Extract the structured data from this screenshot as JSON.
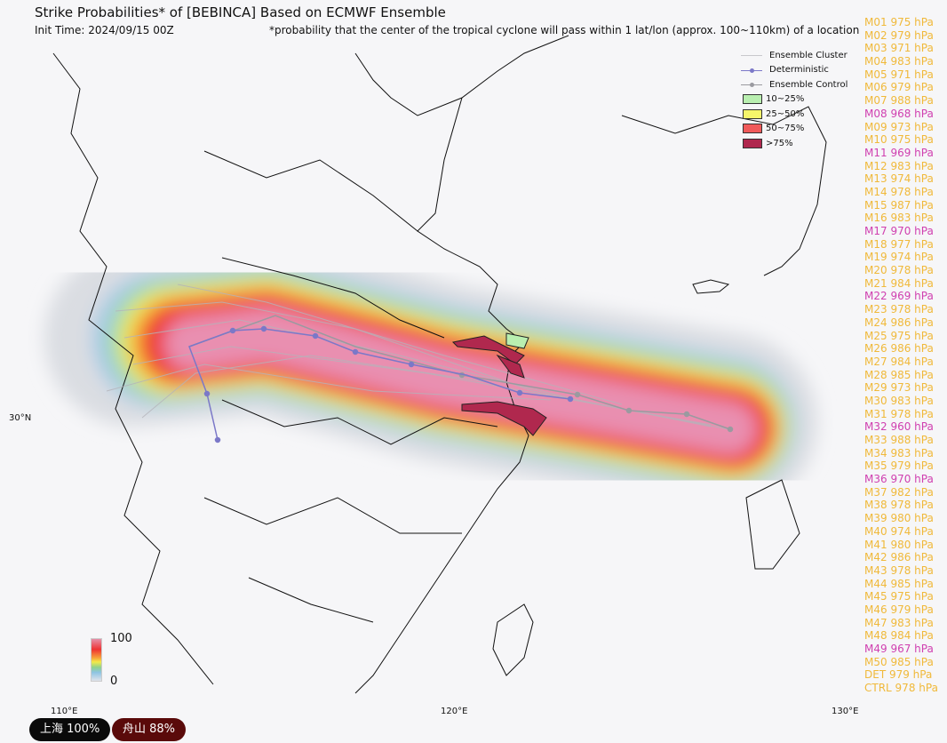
{
  "header": {
    "title": "Strike Probabilities* of [BEBINCA] Based on ECMWF Ensemble",
    "init_time": "Init Time: 2024/09/15 00Z",
    "footnote": "*probability that the center of the tropical cyclone will pass within 1 lat/lon (approx. 100~110km) of a location"
  },
  "legend": {
    "items": [
      {
        "label": "Ensemble Cluster",
        "type": "line",
        "color": "#c8c8cc"
      },
      {
        "label": "Deterministic",
        "type": "line-dot",
        "color": "#7b78c8"
      },
      {
        "label": "Ensemble Control",
        "type": "line-dot",
        "color": "#9a9aa0"
      },
      {
        "label": "10~25%",
        "type": "box",
        "color": "#b9efb0"
      },
      {
        "label": "25~50%",
        "type": "box",
        "color": "#f5f56a"
      },
      {
        "label": "50~75%",
        "type": "box",
        "color": "#f05a5a"
      },
      {
        "label": ">75%",
        "type": "box",
        "color": "#b0284e"
      }
    ]
  },
  "axes": {
    "lon_labels": [
      "110°E",
      "120°E",
      "130°E"
    ],
    "lat_labels": [
      "30°N"
    ]
  },
  "colorbar": {
    "max": "100",
    "min": "0"
  },
  "members": [
    {
      "label": "M01 975 hPa",
      "strong": false
    },
    {
      "label": "M02 979 hPa",
      "strong": false
    },
    {
      "label": "M03 971 hPa",
      "strong": false
    },
    {
      "label": "M04 983 hPa",
      "strong": false
    },
    {
      "label": "M05 971 hPa",
      "strong": false
    },
    {
      "label": "M06 979 hPa",
      "strong": false
    },
    {
      "label": "M07 988 hPa",
      "strong": false
    },
    {
      "label": "M08 968 hPa",
      "strong": true
    },
    {
      "label": "M09 973 hPa",
      "strong": false
    },
    {
      "label": "M10 975 hPa",
      "strong": false
    },
    {
      "label": "M11 969 hPa",
      "strong": true
    },
    {
      "label": "M12 983 hPa",
      "strong": false
    },
    {
      "label": "M13 974 hPa",
      "strong": false
    },
    {
      "label": "M14 978 hPa",
      "strong": false
    },
    {
      "label": "M15 987 hPa",
      "strong": false
    },
    {
      "label": "M16 983 hPa",
      "strong": false
    },
    {
      "label": "M17 970 hPa",
      "strong": true
    },
    {
      "label": "M18 977 hPa",
      "strong": false
    },
    {
      "label": "M19 974 hPa",
      "strong": false
    },
    {
      "label": "M20 978 hPa",
      "strong": false
    },
    {
      "label": "M21 984 hPa",
      "strong": false
    },
    {
      "label": "M22 969 hPa",
      "strong": true
    },
    {
      "label": "M23 978 hPa",
      "strong": false
    },
    {
      "label": "M24 986 hPa",
      "strong": false
    },
    {
      "label": "M25 975 hPa",
      "strong": false
    },
    {
      "label": "M26 986 hPa",
      "strong": false
    },
    {
      "label": "M27 984 hPa",
      "strong": false
    },
    {
      "label": "M28 985 hPa",
      "strong": false
    },
    {
      "label": "M29 973 hPa",
      "strong": false
    },
    {
      "label": "M30 983 hPa",
      "strong": false
    },
    {
      "label": "M31 978 hPa",
      "strong": false
    },
    {
      "label": "M32 960 hPa",
      "strong": true
    },
    {
      "label": "M33 988 hPa",
      "strong": false
    },
    {
      "label": "M34 983 hPa",
      "strong": false
    },
    {
      "label": "M35 979 hPa",
      "strong": false
    },
    {
      "label": "M36 970 hPa",
      "strong": true
    },
    {
      "label": "M37 982 hPa",
      "strong": false
    },
    {
      "label": "M38 978 hPa",
      "strong": false
    },
    {
      "label": "M39 980 hPa",
      "strong": false
    },
    {
      "label": "M40 974 hPa",
      "strong": false
    },
    {
      "label": "M41 980 hPa",
      "strong": false
    },
    {
      "label": "M42 986 hPa",
      "strong": false
    },
    {
      "label": "M43 978 hPa",
      "strong": false
    },
    {
      "label": "M44 985 hPa",
      "strong": false
    },
    {
      "label": "M45 975 hPa",
      "strong": false
    },
    {
      "label": "M46 979 hPa",
      "strong": false
    },
    {
      "label": "M47 983 hPa",
      "strong": false
    },
    {
      "label": "M48 984 hPa",
      "strong": false
    },
    {
      "label": "M49 967 hPa",
      "strong": true
    },
    {
      "label": "M50 985 hPa",
      "strong": false
    },
    {
      "label": "DET 979 hPa",
      "strong": false
    },
    {
      "label": "CTRL 978 hPa",
      "strong": false
    }
  ],
  "member_colors": {
    "normal": "#f0b93a",
    "strong": "#d040b0"
  },
  "badges": [
    {
      "label": "上海  100%",
      "color": "#0a0a0a"
    },
    {
      "label": "舟山  88%",
      "color": "#5a0a0a"
    }
  ]
}
